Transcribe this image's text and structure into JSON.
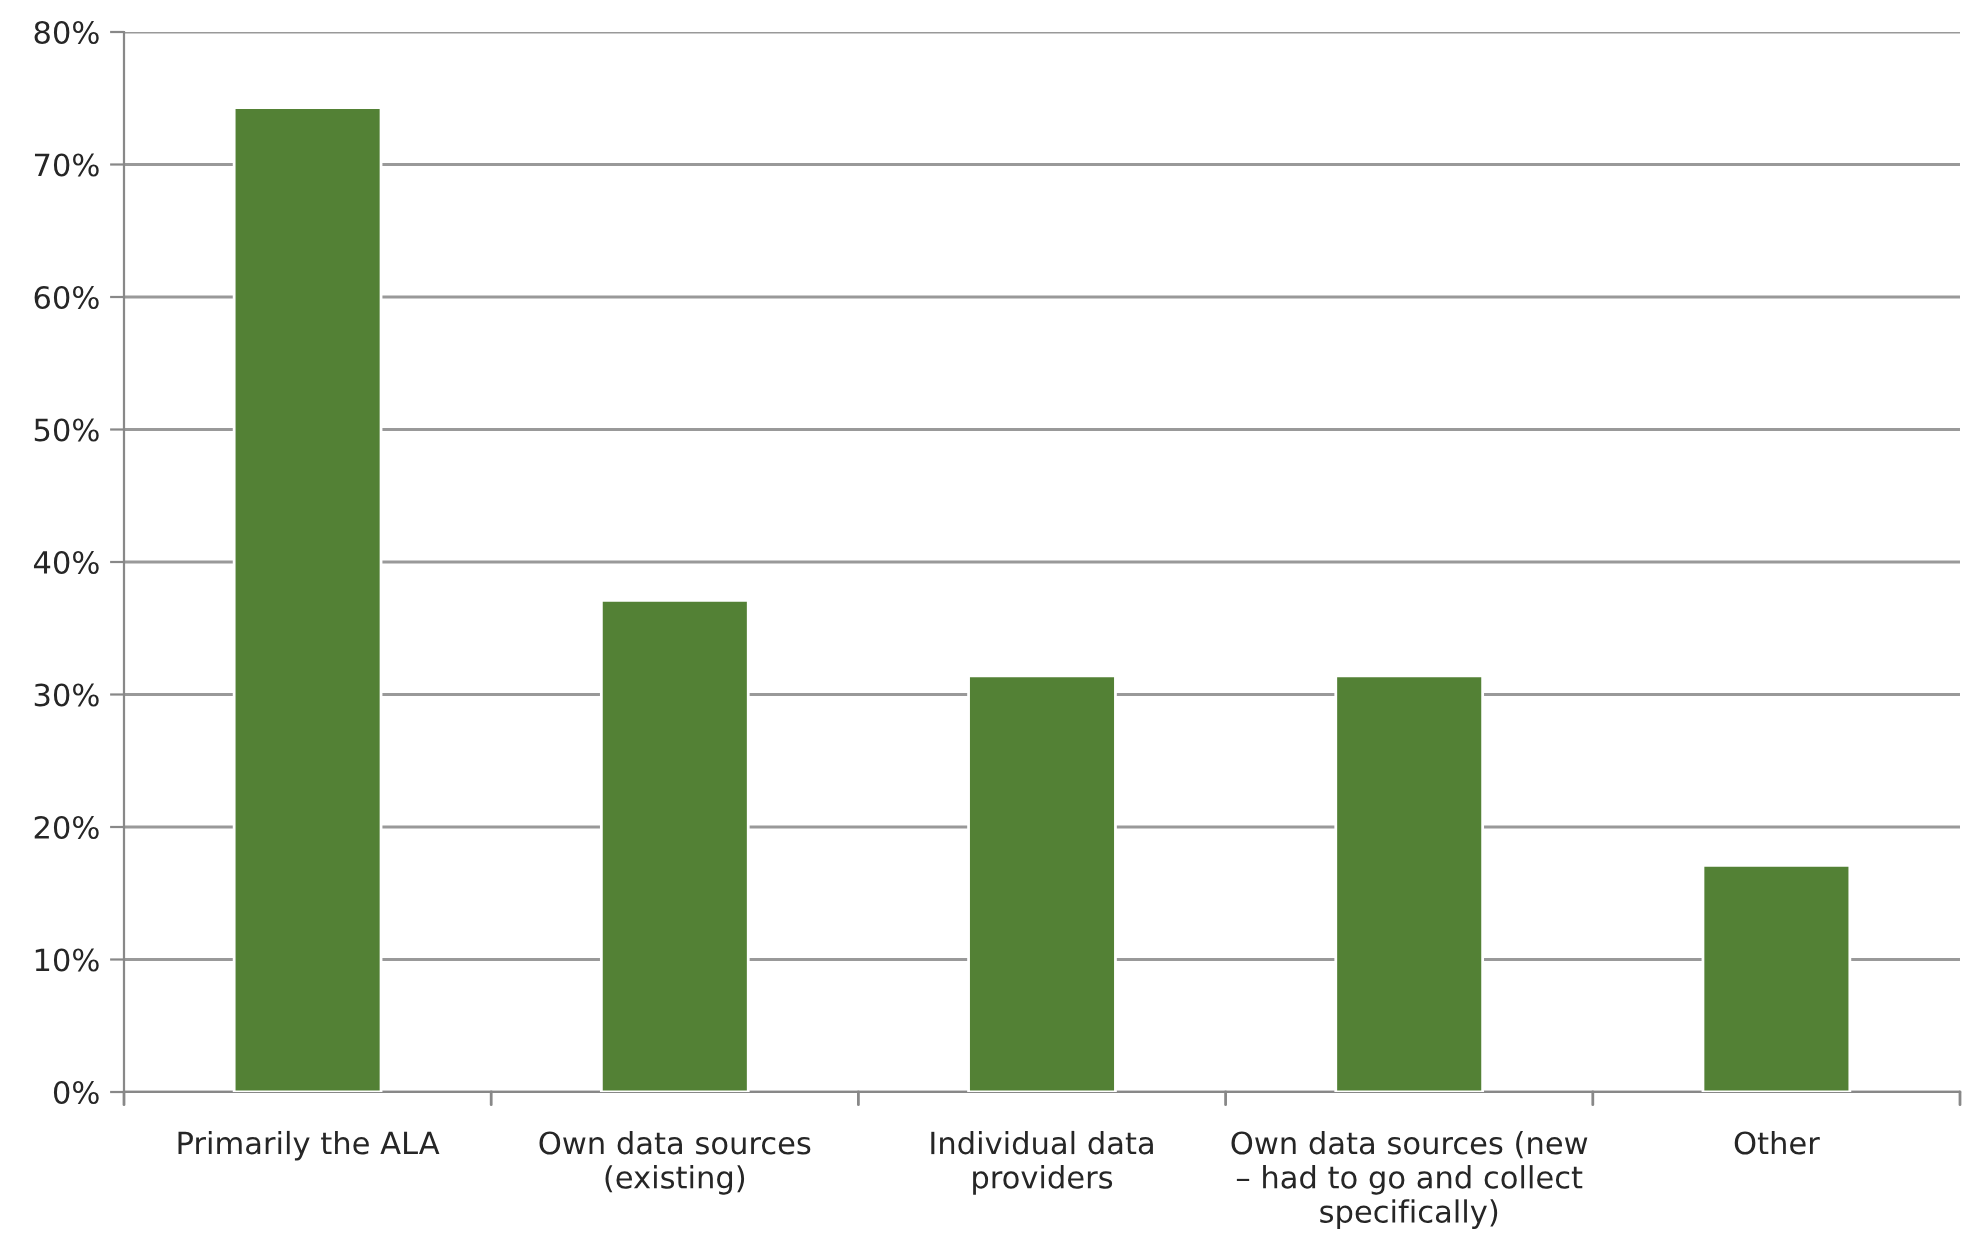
{
  "chart_data": {
    "type": "bar",
    "categories": [
      "Primarily the ALA",
      "Own data sources\n(existing)",
      "Individual data\nproviders",
      "Own data sources (new\n– had to go and collect\nspecifically)",
      "Other"
    ],
    "values": [
      74.3,
      37.1,
      31.4,
      31.4,
      17.1
    ],
    "color": "#538135",
    "ylim": [
      0,
      80
    ],
    "yticks": [
      {
        "value": 0,
        "label": "0%"
      },
      {
        "value": 10,
        "label": "10%"
      },
      {
        "value": 20,
        "label": "20%"
      },
      {
        "value": 30,
        "label": "30%"
      },
      {
        "value": 40,
        "label": "40%"
      },
      {
        "value": 50,
        "label": "50%"
      },
      {
        "value": 60,
        "label": "60%"
      },
      {
        "value": 70,
        "label": "70%"
      },
      {
        "value": 80,
        "label": "80%"
      }
    ],
    "grid": "y",
    "legend": false
  }
}
